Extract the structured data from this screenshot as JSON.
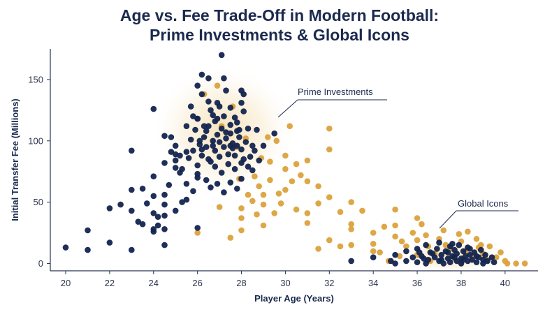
{
  "chart_data": {
    "type": "scatter",
    "title_line1": "Age vs. Fee Trade-Off in Modern Football:",
    "title_line2": "Prime Investments & Global Icons",
    "xlabel": "Player Age (Years)",
    "ylabel": "Initial Transfer Fee (Millions)",
    "xlim": [
      19.3,
      41.5
    ],
    "ylim": [
      -6,
      175
    ],
    "xticks": [
      20,
      22,
      24,
      26,
      28,
      30,
      32,
      34,
      36,
      38,
      40
    ],
    "yticks": [
      0,
      50,
      100,
      150
    ],
    "grid": false,
    "colors": {
      "navy": "#13244f",
      "gold": "#dca23c",
      "text": "#1b2a4e",
      "axis": "#2b3350"
    },
    "series": [
      {
        "color": "navy",
        "points": [
          [
            20,
            13
          ],
          [
            21,
            11
          ],
          [
            21,
            27
          ],
          [
            22,
            17
          ],
          [
            22,
            45
          ],
          [
            22.5,
            48
          ],
          [
            23,
            11
          ],
          [
            23,
            60
          ],
          [
            23,
            43
          ],
          [
            23,
            92
          ],
          [
            23.3,
            34
          ],
          [
            23.5,
            61
          ],
          [
            23.5,
            32
          ],
          [
            23.7,
            49
          ],
          [
            24,
            26
          ],
          [
            24,
            55
          ],
          [
            24,
            28
          ],
          [
            24,
            41
          ],
          [
            24,
            126
          ],
          [
            24.2,
            38
          ],
          [
            24.2,
            31
          ],
          [
            24.5,
            39
          ],
          [
            24.5,
            56
          ],
          [
            24.5,
            48
          ],
          [
            24.7,
            64
          ],
          [
            24.5,
            28
          ],
          [
            24.5,
            15
          ],
          [
            24,
            71
          ],
          [
            24.5,
            82
          ],
          [
            24.8,
            103
          ],
          [
            25,
            96
          ],
          [
            25,
            78
          ],
          [
            25,
            43
          ],
          [
            25,
            89
          ],
          [
            25.2,
            74
          ],
          [
            25.3,
            50
          ],
          [
            25.5,
            65
          ],
          [
            25.5,
            52
          ],
          [
            25.7,
            128
          ],
          [
            25.8,
            92
          ],
          [
            25.8,
            59
          ],
          [
            26,
            70
          ],
          [
            26,
            118
          ],
          [
            26,
            145
          ],
          [
            26,
            29
          ],
          [
            26.2,
            154
          ],
          [
            26.2,
            138
          ],
          [
            26.5,
            151
          ],
          [
            26.5,
            132
          ],
          [
            26.7,
            121
          ],
          [
            26.8,
            116
          ],
          [
            26.9,
            118
          ],
          [
            27,
            128
          ],
          [
            27.1,
            170
          ],
          [
            27.2,
            151
          ],
          [
            27.3,
            141
          ],
          [
            27.5,
            113
          ],
          [
            27.5,
            96
          ],
          [
            27.7,
            119
          ],
          [
            27.8,
            108
          ],
          [
            28,
            141
          ],
          [
            28,
            131
          ],
          [
            28,
            82
          ],
          [
            28,
            69
          ],
          [
            28.1,
            138
          ],
          [
            28.1,
            124
          ],
          [
            28.3,
            110
          ],
          [
            28.5,
            96
          ],
          [
            28.5,
            76
          ],
          [
            28.7,
            109
          ],
          [
            29,
            96
          ],
          [
            29.5,
            106
          ],
          [
            24.5,
            104
          ],
          [
            24.8,
            91
          ],
          [
            25,
            84
          ],
          [
            25.3,
            77
          ],
          [
            25.5,
            91
          ],
          [
            25.7,
            101
          ],
          [
            25.9,
            109
          ],
          [
            26,
            80
          ],
          [
            26.1,
            97
          ],
          [
            26.2,
            88
          ],
          [
            26.3,
            103
          ],
          [
            26.4,
            95
          ],
          [
            26.5,
            112
          ],
          [
            26.6,
            83
          ],
          [
            26.7,
            100
          ],
          [
            26.8,
            92
          ],
          [
            26.9,
            105
          ],
          [
            27,
            87
          ],
          [
            27.1,
            110
          ],
          [
            27.2,
            95
          ],
          [
            27.3,
            102
          ],
          [
            27.4,
            89
          ],
          [
            27.5,
            106
          ],
          [
            27.6,
            98
          ],
          [
            27.7,
            88
          ],
          [
            27.8,
            96
          ],
          [
            27.9,
            103
          ],
          [
            28,
            93
          ],
          [
            28.2,
            99
          ],
          [
            28.4,
            87
          ],
          [
            28.6,
            92
          ],
          [
            28.8,
            84
          ],
          [
            26,
            118
          ],
          [
            26.3,
            112
          ],
          [
            26.6,
            125
          ],
          [
            26.9,
            131
          ],
          [
            27.2,
            120
          ],
          [
            27.5,
            127
          ],
          [
            27.8,
            115
          ],
          [
            25.5,
            112
          ],
          [
            25.8,
            120
          ],
          [
            26.1,
            100
          ],
          [
            26.4,
            108
          ],
          [
            26.7,
            96
          ],
          [
            27,
            99
          ],
          [
            27.3,
            107
          ],
          [
            27.6,
            94
          ],
          [
            27.9,
            109
          ],
          [
            26.2,
            93
          ],
          [
            26.5,
            85
          ],
          [
            26.8,
            79
          ],
          [
            27.1,
            74
          ],
          [
            27.4,
            81
          ],
          [
            27.7,
            77
          ],
          [
            28.1,
            85
          ],
          [
            28.3,
            79
          ],
          [
            25.2,
            88
          ],
          [
            25.6,
            86
          ],
          [
            26.0,
            73
          ],
          [
            26.4,
            68
          ],
          [
            26.6,
            62
          ],
          [
            26.9,
            65
          ],
          [
            27.2,
            58
          ],
          [
            27.5,
            66
          ],
          [
            27.8,
            61
          ],
          [
            33,
            2
          ],
          [
            34,
            5
          ],
          [
            34.8,
            2
          ],
          [
            35,
            7
          ],
          [
            35,
            0
          ],
          [
            35.5,
            10
          ],
          [
            35.5,
            2
          ],
          [
            35.8,
            5
          ],
          [
            36,
            12
          ],
          [
            36,
            1
          ],
          [
            36.2,
            6
          ],
          [
            36.4,
            15
          ],
          [
            36.4,
            0
          ],
          [
            36.5,
            3
          ],
          [
            36.6,
            9
          ],
          [
            36.8,
            5
          ],
          [
            36.9,
            12
          ],
          [
            37,
            2
          ],
          [
            37,
            17
          ],
          [
            37.1,
            7
          ],
          [
            37.2,
            0
          ],
          [
            37.3,
            10
          ],
          [
            37.4,
            4
          ],
          [
            37.5,
            14
          ],
          [
            37.5,
            1
          ],
          [
            37.6,
            6
          ],
          [
            37.7,
            11
          ],
          [
            37.8,
            2
          ],
          [
            37.8,
            8
          ],
          [
            37.9,
            15
          ],
          [
            38,
            4
          ],
          [
            38,
            0
          ],
          [
            38.1,
            10
          ],
          [
            38.2,
            6
          ],
          [
            38.3,
            2
          ],
          [
            38.3,
            13
          ],
          [
            38.4,
            7
          ],
          [
            38.5,
            3
          ],
          [
            38.6,
            9
          ],
          [
            38.7,
            1
          ],
          [
            38.8,
            5
          ],
          [
            38.9,
            11
          ],
          [
            39,
            3
          ],
          [
            39,
            0
          ],
          [
            39.1,
            7
          ],
          [
            39.2,
            2
          ],
          [
            39.4,
            5
          ],
          [
            39.5,
            1
          ],
          [
            36.3,
            4
          ],
          [
            36.7,
            8
          ],
          [
            37.1,
            3
          ],
          [
            37.4,
            9
          ],
          [
            37.7,
            5
          ],
          [
            38.1,
            3
          ],
          [
            38.4,
            12
          ],
          [
            38.7,
            6
          ],
          [
            36.1,
            9
          ],
          [
            37.6,
            16
          ]
        ]
      },
      {
        "color": "gold",
        "points": [
          [
            26,
            25
          ],
          [
            27,
            46
          ],
          [
            27.5,
            21
          ],
          [
            28,
            37
          ],
          [
            28,
            45
          ],
          [
            28,
            27
          ],
          [
            28.3,
            56
          ],
          [
            28.5,
            51
          ],
          [
            28.7,
            40
          ],
          [
            28.8,
            63
          ],
          [
            29,
            56
          ],
          [
            29,
            48
          ],
          [
            29,
            31
          ],
          [
            29.3,
            68
          ],
          [
            29.5,
            41
          ],
          [
            29.7,
            57
          ],
          [
            29.8,
            49
          ],
          [
            30,
            77
          ],
          [
            30,
            60
          ],
          [
            30,
            88
          ],
          [
            30.3,
            67
          ],
          [
            30.5,
            44
          ],
          [
            30.7,
            72
          ],
          [
            31,
            33
          ],
          [
            31,
            84
          ],
          [
            31,
            67
          ],
          [
            31,
            41
          ],
          [
            31.5,
            63
          ],
          [
            31.5,
            12
          ],
          [
            31.5,
            49
          ],
          [
            32,
            54
          ],
          [
            32,
            19
          ],
          [
            32,
            93
          ],
          [
            32,
            110
          ],
          [
            32.5,
            14
          ],
          [
            32.5,
            42
          ],
          [
            33,
            28
          ],
          [
            33,
            50
          ],
          [
            33,
            15
          ],
          [
            33,
            32
          ],
          [
            33.5,
            43
          ],
          [
            34,
            25
          ],
          [
            34,
            16
          ],
          [
            34,
            10
          ],
          [
            34.3,
            9
          ],
          [
            34.5,
            30
          ],
          [
            34.7,
            2
          ],
          [
            35,
            22
          ],
          [
            35,
            44
          ],
          [
            35,
            31
          ],
          [
            35.3,
            18
          ],
          [
            35.5,
            14
          ],
          [
            35.8,
            25
          ],
          [
            36,
            7
          ],
          [
            36,
            37
          ],
          [
            36,
            19
          ],
          [
            36.2,
            32
          ],
          [
            36.5,
            14
          ],
          [
            36.6,
            2
          ],
          [
            36.8,
            8
          ],
          [
            37,
            20
          ],
          [
            37.2,
            27
          ],
          [
            37.5,
            12
          ],
          [
            37.7,
            4
          ],
          [
            37.9,
            24
          ],
          [
            38,
            18
          ],
          [
            38,
            0
          ],
          [
            38.2,
            10
          ],
          [
            38.3,
            26
          ],
          [
            38.5,
            6
          ],
          [
            38.7,
            20
          ],
          [
            38.8,
            13
          ],
          [
            39,
            8
          ],
          [
            39.2,
            3
          ],
          [
            39.3,
            14
          ],
          [
            39.6,
            5
          ],
          [
            39.8,
            9
          ],
          [
            40,
            2
          ],
          [
            40.1,
            0
          ],
          [
            40.5,
            0
          ],
          [
            40.9,
            0
          ],
          [
            38.9,
            15
          ],
          [
            37.3,
            15
          ],
          [
            36.4,
            23
          ],
          [
            35.2,
            6
          ],
          [
            29.2,
            103
          ],
          [
            29.6,
            100
          ],
          [
            30.2,
            112
          ],
          [
            28.9,
            86
          ],
          [
            28.2,
            102
          ],
          [
            27.6,
            128
          ],
          [
            26.9,
            145
          ],
          [
            26.3,
            138
          ],
          [
            27.1,
            112
          ],
          [
            27.8,
            95
          ],
          [
            30.5,
            81
          ],
          [
            29.3,
            83
          ],
          [
            28.6,
            71
          ],
          [
            27.9,
            69
          ]
        ]
      }
    ],
    "annotations": [
      {
        "text": "Prime Investments"
      },
      {
        "text": "Global Icons"
      }
    ]
  }
}
